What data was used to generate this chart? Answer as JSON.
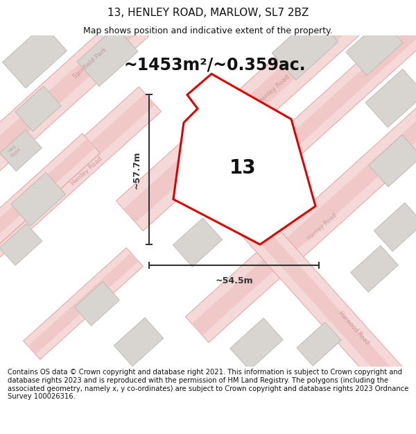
{
  "title": "13, HENLEY ROAD, MARLOW, SL7 2BZ",
  "subtitle": "Map shows position and indicative extent of the property.",
  "area_text": "~1453m²/~0.359ac.",
  "width_label": "~54.5m",
  "height_label": "~57.7m",
  "number_label": "13",
  "map_bg": "#f2f0ee",
  "road_fill": "#f5d8d8",
  "road_edge": "#e8a0a0",
  "road_center_fill": "#f0c8c8",
  "building_fill": "#d8d4d0",
  "building_edge": "#c0bbb5",
  "plot_fill": "#ffffff",
  "plot_edge": "#dd0000",
  "plot_lw": 2.2,
  "dim_color": "#333333",
  "text_color": "#111111",
  "footer_text": "Contains OS data © Crown copyright and database right 2021. This information is subject to Crown copyright and database rights 2023 and is reproduced with the permission of HM Land Registry. The polygons (including the associated geometry, namely x, y co-ordinates) are subject to Crown copyright and database rights 2023 Ordnance Survey 100026316.",
  "title_fontsize": 11,
  "subtitle_fontsize": 9,
  "area_fontsize": 17,
  "dim_fontsize": 9,
  "number_fontsize": 20,
  "footer_fontsize": 7.2,
  "road_label_color": "#c09090",
  "road_label_fontsize": 6.5
}
